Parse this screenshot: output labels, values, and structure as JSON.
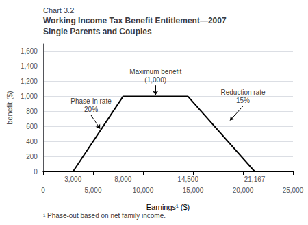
{
  "chart_data": {
    "type": "line",
    "caption": "Chart 3.2",
    "title": "Working Income Tax Benefit Entitlement—2007",
    "subtitle": "Single Parents and Couples",
    "xlabel": "Earnings¹ ($)",
    "ylabel": "benefit ($)",
    "footnote": "¹ Phase-out based on net family income.",
    "x": [
      0,
      3000,
      8000,
      14500,
      21167,
      25000
    ],
    "values": [
      0,
      0,
      1000,
      1000,
      0,
      0
    ],
    "color": "#000000",
    "xlim": [
      0,
      25000
    ],
    "ylim": [
      0,
      1700
    ],
    "xticks": [
      0,
      {
        "value": 5000,
        "label": "5,000"
      },
      {
        "value": 10000,
        "label": "10,000"
      },
      {
        "value": 15000,
        "label": "15,000"
      },
      {
        "value": 20000,
        "label": "20,000"
      },
      {
        "value": 25000,
        "label": "25,000"
      }
    ],
    "yticks": [
      0,
      200,
      400,
      600,
      800,
      {
        "value": 1000,
        "label": "1,000"
      },
      {
        "value": 1200,
        "label": "1,200"
      },
      {
        "value": 1400,
        "label": "1,400"
      },
      {
        "value": 1600,
        "label": "1,600"
      }
    ],
    "special_xticks": [
      {
        "value": 3000,
        "label": "3,000"
      },
      {
        "value": 8000,
        "label": "8,000"
      },
      {
        "value": 14500,
        "label": "14,500"
      },
      {
        "value": 21167,
        "label": "21,167"
      }
    ],
    "reference_lines": [
      {
        "x": 8000,
        "color": "#999999",
        "line_style": "dashed"
      },
      {
        "x": 14500,
        "color": "#999999",
        "line_style": "dashed"
      }
    ],
    "annotations": [
      {
        "text": "Phase-in rate\n20%",
        "x": 4800,
        "y": 750,
        "arrow_x": 5700,
        "arrow_y": 570
      },
      {
        "text": "Maximum benefit\n(1,000)",
        "x": 11250,
        "y": 1150,
        "arrow_x": 11250,
        "arrow_y": 1020
      },
      {
        "text": "Reduction rate\n15%",
        "x": 20000,
        "y": 870,
        "arrow_x": 18700,
        "arrow_y": 680
      }
    ],
    "grid": true
  }
}
